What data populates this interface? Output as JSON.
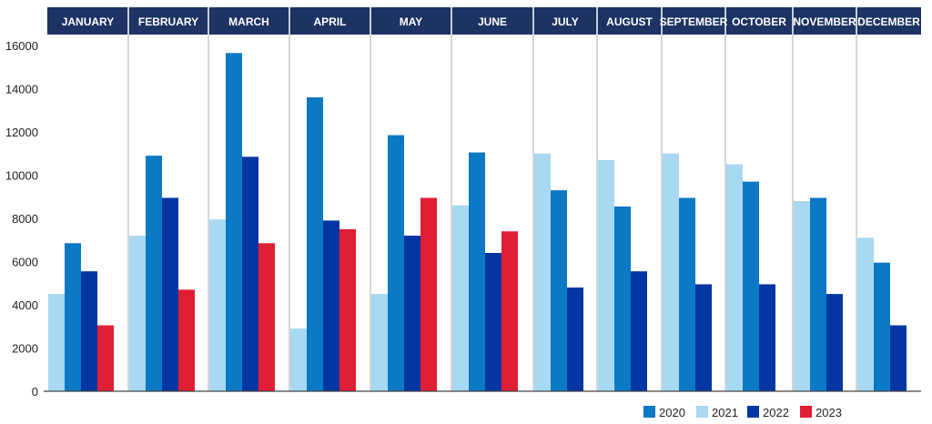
{
  "chart_data": {
    "type": "bar",
    "categories": [
      "JANUARY",
      "FEBRUARY",
      "MARCH",
      "APRIL",
      "MAY",
      "JUNE",
      "JULY",
      "AUGUST",
      "SEPTEMBER",
      "OCTOBER",
      "NOVEMBER",
      "DECEMBER"
    ],
    "series": [
      {
        "name": "2021",
        "color": "#a8d8f2",
        "values": [
          4500,
          7200,
          7950,
          2900,
          4500,
          8600,
          11000,
          10700,
          11000,
          10500,
          8800,
          7100
        ]
      },
      {
        "name": "2020",
        "color": "#0b79c4",
        "values": [
          6850,
          10900,
          15650,
          13600,
          11850,
          11050,
          9300,
          8550,
          8950,
          9700,
          8950,
          5950
        ]
      },
      {
        "name": "2022",
        "color": "#0436a3",
        "values": [
          5550,
          8950,
          10850,
          7900,
          7200,
          6400,
          4800,
          5550,
          4950,
          4950,
          4500,
          3050
        ]
      },
      {
        "name": "2023",
        "color": "#e01e34",
        "values": [
          3050,
          4700,
          6850,
          7500,
          8950,
          7400,
          null,
          null,
          null,
          null,
          null,
          null
        ]
      }
    ],
    "legend": [
      "2020",
      "2021",
      "2022",
      "2023"
    ],
    "legend_position": "bottom-right",
    "yticks": [
      0,
      2000,
      4000,
      6000,
      8000,
      10000,
      12000,
      14000,
      16000
    ],
    "ylim": [
      0,
      16000
    ],
    "grid": false,
    "header_color": "#1c3363"
  }
}
